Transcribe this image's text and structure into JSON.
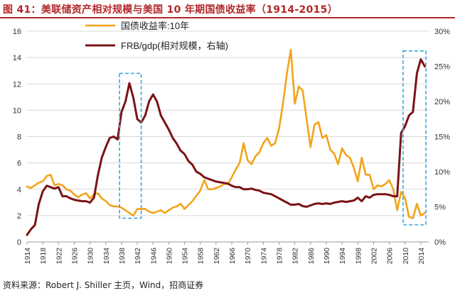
{
  "title": "图 41：美联储资产相对规模与美国 10 年期国债收益率（1914-2015）",
  "source": "资料来源：Robert J. Shiller 主页，Wind，招商证券",
  "colors": {
    "yield": "#F2A41A",
    "frb": "#7A1315",
    "highlight": "#3AA7D9",
    "title": "#B3272A"
  },
  "chart_data": {
    "type": "line",
    "title": "图 41：美联储资产相对规模与美国 10 年期国债收益率（1914-2015）",
    "x_ticks": [
      "1914",
      "1918",
      "1922",
      "1926",
      "1930",
      "1934",
      "1938",
      "1942",
      "1946",
      "1950",
      "1954",
      "1958",
      "1962",
      "1966",
      "1970",
      "1974",
      "1978",
      "1982",
      "1986",
      "1990",
      "1994",
      "1998",
      "2002",
      "2006",
      "2010",
      "2014"
    ],
    "xlim": [
      1914,
      2016
    ],
    "y_left": {
      "ylim": [
        0,
        16
      ],
      "ticks": [
        "0",
        "2",
        "4",
        "6",
        "8",
        "10",
        "12",
        "14",
        "16"
      ]
    },
    "y_right": {
      "ylim": [
        0,
        30
      ],
      "ticks": [
        "0%",
        "5%",
        "10%",
        "15%",
        "20%",
        "25%",
        "30%"
      ]
    },
    "legend": {
      "placement": "top-left",
      "entries": [
        "国债收益率:10年",
        "FRB/gdp(相对规模，右轴)"
      ]
    },
    "series": [
      {
        "name": "国债收益率:10年",
        "axis": "left",
        "points": [
          [
            1914,
            4.2
          ],
          [
            1915,
            4.1
          ],
          [
            1916,
            4.3
          ],
          [
            1917,
            4.5
          ],
          [
            1918,
            4.6
          ],
          [
            1919,
            5.0
          ],
          [
            1920,
            5.1
          ],
          [
            1921,
            4.3
          ],
          [
            1922,
            4.4
          ],
          [
            1923,
            4.3
          ],
          [
            1924,
            4.0
          ],
          [
            1925,
            3.9
          ],
          [
            1926,
            3.6
          ],
          [
            1927,
            3.4
          ],
          [
            1928,
            3.6
          ],
          [
            1929,
            3.7
          ],
          [
            1930,
            3.3
          ],
          [
            1931,
            3.6
          ],
          [
            1932,
            3.7
          ],
          [
            1933,
            3.3
          ],
          [
            1934,
            3.1
          ],
          [
            1935,
            2.8
          ],
          [
            1936,
            2.7
          ],
          [
            1937,
            2.7
          ],
          [
            1938,
            2.6
          ],
          [
            1939,
            2.4
          ],
          [
            1940,
            2.2
          ],
          [
            1941,
            2.0
          ],
          [
            1942,
            2.5
          ],
          [
            1943,
            2.5
          ],
          [
            1944,
            2.5
          ],
          [
            1945,
            2.3
          ],
          [
            1946,
            2.2
          ],
          [
            1947,
            2.3
          ],
          [
            1948,
            2.4
          ],
          [
            1949,
            2.2
          ],
          [
            1950,
            2.4
          ],
          [
            1951,
            2.6
          ],
          [
            1952,
            2.7
          ],
          [
            1953,
            2.9
          ],
          [
            1954,
            2.5
          ],
          [
            1955,
            2.8
          ],
          [
            1956,
            3.1
          ],
          [
            1957,
            3.5
          ],
          [
            1958,
            3.9
          ],
          [
            1959,
            4.7
          ],
          [
            1960,
            4.0
          ],
          [
            1961,
            4.0
          ],
          [
            1962,
            4.1
          ],
          [
            1963,
            4.2
          ],
          [
            1964,
            4.4
          ],
          [
            1965,
            4.4
          ],
          [
            1966,
            4.9
          ],
          [
            1967,
            5.5
          ],
          [
            1968,
            6.0
          ],
          [
            1969,
            7.5
          ],
          [
            1970,
            6.2
          ],
          [
            1971,
            5.9
          ],
          [
            1972,
            6.5
          ],
          [
            1973,
            6.8
          ],
          [
            1974,
            7.5
          ],
          [
            1975,
            7.9
          ],
          [
            1976,
            7.3
          ],
          [
            1977,
            7.5
          ],
          [
            1978,
            8.6
          ],
          [
            1979,
            10.5
          ],
          [
            1980,
            12.8
          ],
          [
            1981,
            14.6
          ],
          [
            1982,
            10.5
          ],
          [
            1983,
            11.8
          ],
          [
            1984,
            11.5
          ],
          [
            1985,
            9.3
          ],
          [
            1986,
            7.2
          ],
          [
            1987,
            8.9
          ],
          [
            1988,
            9.1
          ],
          [
            1989,
            7.9
          ],
          [
            1990,
            8.1
          ],
          [
            1991,
            7.0
          ],
          [
            1992,
            6.7
          ],
          [
            1993,
            5.9
          ],
          [
            1994,
            7.1
          ],
          [
            1995,
            6.6
          ],
          [
            1996,
            6.4
          ],
          [
            1997,
            5.6
          ],
          [
            1998,
            4.6
          ],
          [
            1999,
            6.4
          ],
          [
            2000,
            5.1
          ],
          [
            2001,
            5.1
          ],
          [
            2002,
            4.0
          ],
          [
            2003,
            4.3
          ],
          [
            2004,
            4.2
          ],
          [
            2005,
            4.4
          ],
          [
            2006,
            4.7
          ],
          [
            2007,
            4.0
          ],
          [
            2008,
            2.4
          ],
          [
            2009,
            3.8
          ],
          [
            2010,
            3.3
          ],
          [
            2011,
            1.9
          ],
          [
            2012,
            1.8
          ],
          [
            2013,
            2.9
          ],
          [
            2014,
            2.0
          ],
          [
            2015,
            2.2
          ]
        ]
      },
      {
        "name": "FRB/gdp(相对规模，右轴)",
        "axis": "right",
        "points": [
          [
            1914,
            1.0
          ],
          [
            1915,
            1.8
          ],
          [
            1916,
            2.4
          ],
          [
            1917,
            5.4
          ],
          [
            1918,
            7.2
          ],
          [
            1919,
            8.0
          ],
          [
            1920,
            7.8
          ],
          [
            1921,
            7.6
          ],
          [
            1922,
            7.8
          ],
          [
            1923,
            6.5
          ],
          [
            1924,
            6.5
          ],
          [
            1925,
            6.2
          ],
          [
            1926,
            6.0
          ],
          [
            1927,
            5.9
          ],
          [
            1928,
            5.8
          ],
          [
            1929,
            5.8
          ],
          [
            1930,
            5.6
          ],
          [
            1931,
            6.3
          ],
          [
            1932,
            9.5
          ],
          [
            1933,
            12.0
          ],
          [
            1934,
            13.5
          ],
          [
            1935,
            14.8
          ],
          [
            1936,
            15.0
          ],
          [
            1937,
            14.6
          ],
          [
            1938,
            18.5
          ],
          [
            1939,
            20.0
          ],
          [
            1940,
            22.6
          ],
          [
            1941,
            20.5
          ],
          [
            1942,
            17.5
          ],
          [
            1943,
            17.0
          ],
          [
            1944,
            18.0
          ],
          [
            1945,
            20.0
          ],
          [
            1946,
            21.0
          ],
          [
            1947,
            20.0
          ],
          [
            1948,
            18.0
          ],
          [
            1949,
            17.0
          ],
          [
            1950,
            16.0
          ],
          [
            1951,
            14.8
          ],
          [
            1952,
            14.0
          ],
          [
            1953,
            13.0
          ],
          [
            1954,
            12.5
          ],
          [
            1955,
            11.5
          ],
          [
            1956,
            11.0
          ],
          [
            1957,
            10.0
          ],
          [
            1958,
            9.7
          ],
          [
            1959,
            9.2
          ],
          [
            1960,
            9.0
          ],
          [
            1961,
            8.8
          ],
          [
            1962,
            8.6
          ],
          [
            1963,
            8.5
          ],
          [
            1964,
            8.4
          ],
          [
            1965,
            8.3
          ],
          [
            1966,
            8.0
          ],
          [
            1967,
            7.8
          ],
          [
            1968,
            7.8
          ],
          [
            1969,
            7.5
          ],
          [
            1970,
            7.5
          ],
          [
            1971,
            7.6
          ],
          [
            1972,
            7.4
          ],
          [
            1973,
            7.3
          ],
          [
            1974,
            7.0
          ],
          [
            1975,
            6.9
          ],
          [
            1976,
            6.8
          ],
          [
            1977,
            6.5
          ],
          [
            1978,
            6.2
          ],
          [
            1979,
            5.9
          ],
          [
            1980,
            5.6
          ],
          [
            1981,
            5.3
          ],
          [
            1982,
            5.3
          ],
          [
            1983,
            5.4
          ],
          [
            1984,
            5.1
          ],
          [
            1985,
            5.0
          ],
          [
            1986,
            5.2
          ],
          [
            1987,
            5.4
          ],
          [
            1988,
            5.5
          ],
          [
            1989,
            5.4
          ],
          [
            1990,
            5.5
          ],
          [
            1991,
            5.4
          ],
          [
            1992,
            5.6
          ],
          [
            1993,
            5.7
          ],
          [
            1994,
            5.8
          ],
          [
            1995,
            5.7
          ],
          [
            1996,
            5.8
          ],
          [
            1997,
            5.9
          ],
          [
            1998,
            6.3
          ],
          [
            1999,
            5.8
          ],
          [
            2000,
            6.5
          ],
          [
            2001,
            6.3
          ],
          [
            2002,
            6.7
          ],
          [
            2003,
            6.8
          ],
          [
            2004,
            6.8
          ],
          [
            2005,
            6.8
          ],
          [
            2006,
            6.7
          ],
          [
            2007,
            6.5
          ],
          [
            2008,
            6.5
          ],
          [
            2009,
            15.5
          ],
          [
            2010,
            16.5
          ],
          [
            2011,
            18.0
          ],
          [
            2012,
            18.5
          ],
          [
            2013,
            24.0
          ],
          [
            2014,
            26.0
          ],
          [
            2015,
            25.0
          ]
        ]
      }
    ],
    "highlights": [
      {
        "x_range": [
          1937.5,
          1943.0
        ],
        "y_range": [
          1.8,
          12.8
        ]
      },
      {
        "x_range": [
          2009.5,
          2015.3
        ],
        "y_range": [
          1.3,
          14.5
        ]
      }
    ]
  }
}
